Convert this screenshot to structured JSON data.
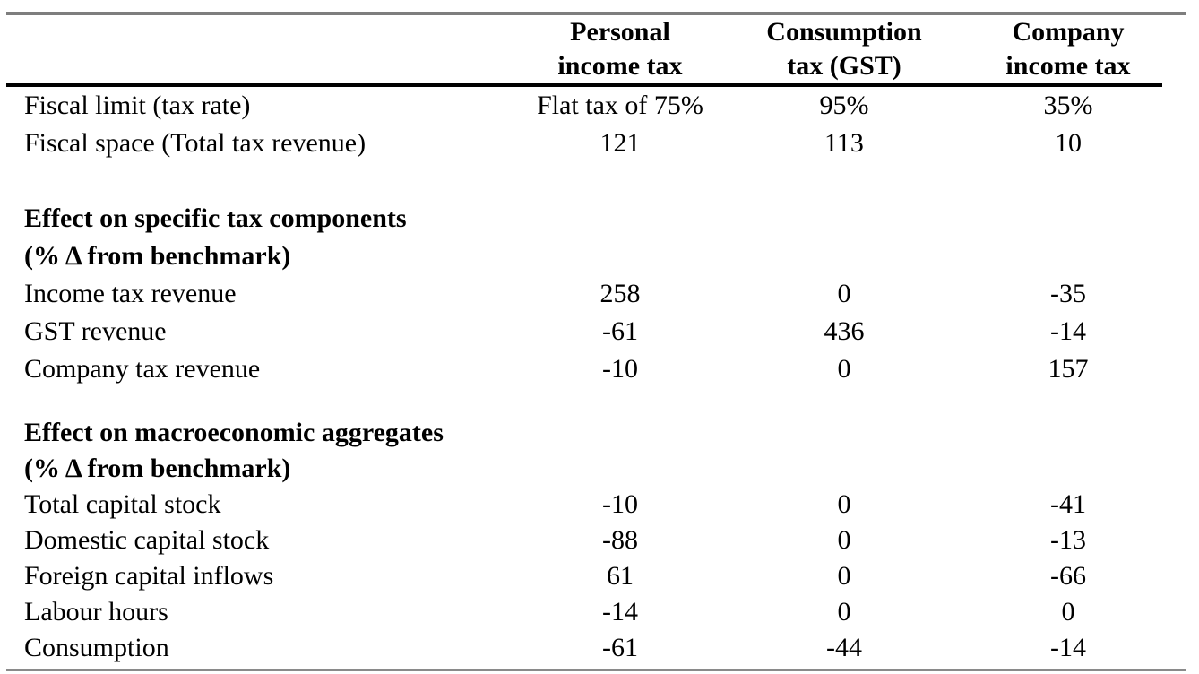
{
  "table": {
    "column_headers": [
      {
        "line1": "Personal",
        "line2": "income tax"
      },
      {
        "line1": "Consumption",
        "line2": "tax (GST)"
      },
      {
        "line1": "Company",
        "line2": "income tax"
      }
    ],
    "top_rows": [
      {
        "label": "Fiscal limit (tax rate)",
        "values": [
          "Flat tax of 75%",
          "95%",
          "35%"
        ]
      },
      {
        "label": "Fiscal space (Total tax revenue)",
        "values": [
          "121",
          "113",
          "10"
        ]
      }
    ],
    "section1": {
      "heading_line1": "Effect on specific tax components",
      "heading_line2": "(% Δ from benchmark)",
      "rows": [
        {
          "label": "Income tax revenue",
          "values": [
            "258",
            "0",
            "-35"
          ]
        },
        {
          "label": "GST revenue",
          "values": [
            "-61",
            "436",
            "-14"
          ]
        },
        {
          "label": "Company tax revenue",
          "values": [
            "-10",
            "0",
            "157"
          ]
        }
      ]
    },
    "section2": {
      "heading_line1": "Effect on macroeconomic aggregates",
      "heading_line2": "(% Δ from benchmark)",
      "rows": [
        {
          "label": "Total capital stock",
          "values": [
            "-10",
            "0",
            "-41"
          ]
        },
        {
          "label": "Domestic capital stock",
          "values": [
            "-88",
            "0",
            "-13"
          ]
        },
        {
          "label": "Foreign capital inflows",
          "values": [
            "61",
            "0",
            "-66"
          ]
        },
        {
          "label": "Labour hours",
          "values": [
            "-14",
            "0",
            "0"
          ]
        },
        {
          "label": "Consumption",
          "values": [
            "-61",
            "-44",
            "-14"
          ]
        }
      ]
    }
  },
  "colors": {
    "background": "#ffffff",
    "text": "#000000",
    "top_rule": "#7e7e7e",
    "header_rule": "#000000",
    "bottom_rule": "#8a8a8a"
  },
  "chart_data": {
    "type": "table",
    "column_headers": [
      "",
      "Personal income tax",
      "Consumption tax (GST)",
      "Company income tax"
    ],
    "rows": [
      [
        "Fiscal limit (tax rate)",
        "Flat tax of 75%",
        "95%",
        "35%"
      ],
      [
        "Fiscal space (Total tax revenue)",
        "121",
        "113",
        "10"
      ],
      [
        "Effect on specific tax components (% Δ from benchmark)",
        "",
        "",
        ""
      ],
      [
        "Income tax revenue",
        "258",
        "0",
        "-35"
      ],
      [
        "GST revenue",
        "-61",
        "436",
        "-14"
      ],
      [
        "Company tax revenue",
        "-10",
        "0",
        "157"
      ],
      [
        "Effect on macroeconomic aggregates (% Δ from benchmark)",
        "",
        "",
        ""
      ],
      [
        "Total capital stock",
        "-10",
        "0",
        "-41"
      ],
      [
        "Domestic capital stock",
        "-88",
        "0",
        "-13"
      ],
      [
        "Foreign capital inflows",
        "61",
        "0",
        "-66"
      ],
      [
        "Labour hours",
        "-14",
        "0",
        "0"
      ],
      [
        "Consumption",
        "-61",
        "-44",
        "-14"
      ]
    ]
  }
}
